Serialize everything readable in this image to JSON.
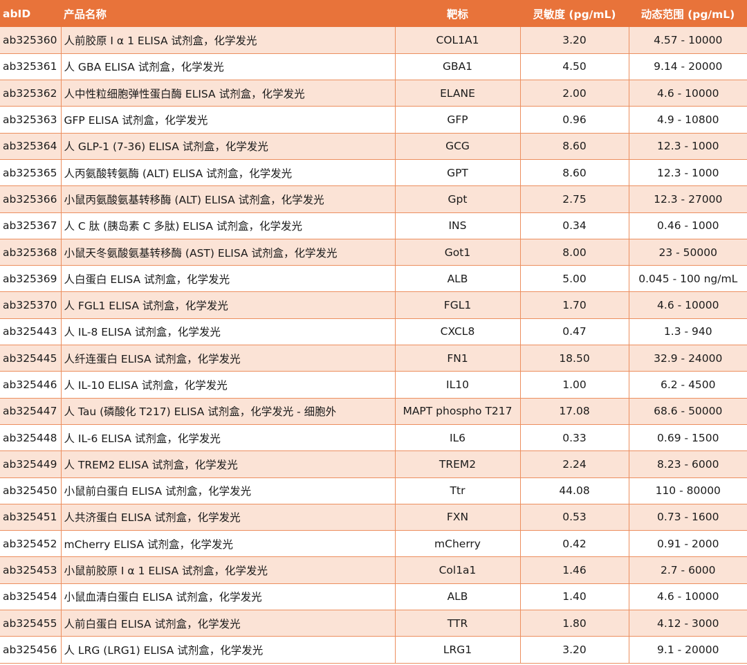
{
  "headers": {
    "id": "abID",
    "name": "产品名称",
    "target": "靶标",
    "sensitivity": "灵敏度 (pg/mL)",
    "range": "动态范围 (pg/mL)"
  },
  "rows": [
    {
      "id": "ab325360",
      "name": "人前胶原 I α 1 ELISA 试剂盒，化学发光",
      "target": "COL1A1",
      "sensitivity": "3.20",
      "range": "4.57 - 10000"
    },
    {
      "id": "ab325361",
      "name": "人 GBA ELISA 试剂盒，化学发光",
      "target": "GBA1",
      "sensitivity": "4.50",
      "range": "9.14 - 20000"
    },
    {
      "id": "ab325362",
      "name": "人中性粒细胞弹性蛋白酶 ELISA 试剂盒，化学发光",
      "target": "ELANE",
      "sensitivity": "2.00",
      "range": "4.6 - 10000"
    },
    {
      "id": "ab325363",
      "name": "GFP ELISA 试剂盒，化学发光",
      "target": "GFP",
      "sensitivity": "0.96",
      "range": "4.9 - 10800"
    },
    {
      "id": "ab325364",
      "name": "人 GLP-1 (7-36) ELISA 试剂盒，化学发光",
      "target": "GCG",
      "sensitivity": "8.60",
      "range": "12.3 - 1000"
    },
    {
      "id": "ab325365",
      "name": "人丙氨酸转氨酶 (ALT) ELISA 试剂盒，化学发光",
      "target": "GPT",
      "sensitivity": "8.60",
      "range": "12.3 - 1000"
    },
    {
      "id": "ab325366",
      "name": "小鼠丙氨酸氨基转移酶 (ALT) ELISA 试剂盒，化学发光",
      "target": "Gpt",
      "sensitivity": "2.75",
      "range": "12.3 - 27000"
    },
    {
      "id": "ab325367",
      "name": "人 C 肽 (胰岛素 C 多肽) ELISA 试剂盒，化学发光",
      "target": "INS",
      "sensitivity": "0.34",
      "range": "0.46 - 1000"
    },
    {
      "id": "ab325368",
      "name": "小鼠天冬氨酸氨基转移酶 (AST) ELISA 试剂盒，化学发光",
      "target": "Got1",
      "sensitivity": "8.00",
      "range": "23 - 50000"
    },
    {
      "id": "ab325369",
      "name": "人白蛋白 ELISA 试剂盒，化学发光",
      "target": "ALB",
      "sensitivity": "5.00",
      "range": "0.045 - 100 ng/mL"
    },
    {
      "id": "ab325370",
      "name": "人 FGL1 ELISA 试剂盒，化学发光",
      "target": "FGL1",
      "sensitivity": "1.70",
      "range": "4.6 - 10000"
    },
    {
      "id": "ab325443",
      "name": "人 IL-8 ELISA 试剂盒，化学发光",
      "target": "CXCL8",
      "sensitivity": "0.47",
      "range": "1.3 - 940"
    },
    {
      "id": "ab325445",
      "name": "人纤连蛋白 ELISA 试剂盒，化学发光",
      "target": "FN1",
      "sensitivity": "18.50",
      "range": "32.9 - 24000"
    },
    {
      "id": "ab325446",
      "name": "人 IL-10 ELISA 试剂盒，化学发光",
      "target": "IL10",
      "sensitivity": "1.00",
      "range": "6.2 - 4500"
    },
    {
      "id": "ab325447",
      "name": "人 Tau (磷酸化 T217) ELISA 试剂盒，化学发光 - 细胞外",
      "target": "MAPT phospho T217",
      "sensitivity": "17.08",
      "range": "68.6 - 50000"
    },
    {
      "id": "ab325448",
      "name": "人 IL-6 ELISA 试剂盒，化学发光",
      "target": "IL6",
      "sensitivity": "0.33",
      "range": "0.69 - 1500"
    },
    {
      "id": "ab325449",
      "name": "人 TREM2 ELISA 试剂盒，化学发光",
      "target": "TREM2",
      "sensitivity": "2.24",
      "range": "8.23 - 6000"
    },
    {
      "id": "ab325450",
      "name": "小鼠前白蛋白 ELISA 试剂盒，化学发光",
      "target": "Ttr",
      "sensitivity": "44.08",
      "range": "110 - 80000"
    },
    {
      "id": "ab325451",
      "name": "人共济蛋白 ELISA 试剂盒，化学发光",
      "target": "FXN",
      "sensitivity": "0.53",
      "range": "0.73 - 1600"
    },
    {
      "id": "ab325452",
      "name": "mCherry ELISA 试剂盒，化学发光",
      "target": "mCherry",
      "sensitivity": "0.42",
      "range": "0.91 - 2000"
    },
    {
      "id": "ab325453",
      "name": "小鼠前胶原 I α 1 ELISA 试剂盒，化学发光",
      "target": "Col1a1",
      "sensitivity": "1.46",
      "range": "2.7 - 6000"
    },
    {
      "id": "ab325454",
      "name": "小鼠血清白蛋白 ELISA 试剂盒，化学发光",
      "target": "ALB",
      "sensitivity": "1.40",
      "range": "4.6 - 10000"
    },
    {
      "id": "ab325455",
      "name": "人前白蛋白 ELISA 试剂盒，化学发光",
      "target": "TTR",
      "sensitivity": "1.80",
      "range": "4.12 - 3000"
    },
    {
      "id": "ab325456",
      "name": "人 LRG (LRG1) ELISA 试剂盒，化学发光",
      "target": "LRG1",
      "sensitivity": "3.20",
      "range": "9.1 - 20000"
    }
  ]
}
